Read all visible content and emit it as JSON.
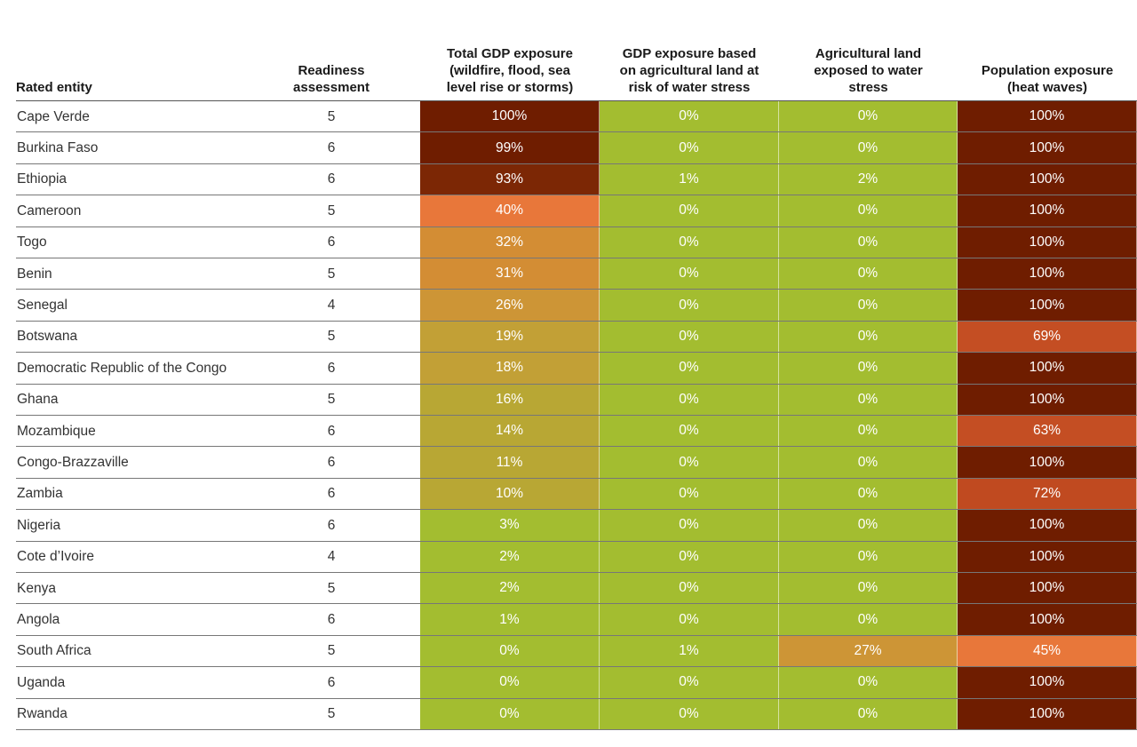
{
  "chart_data": {
    "type": "heatmap",
    "columns": [
      "Rated entity",
      "Readiness assessment",
      "Total GDP exposure (wildfire, flood, sea level rise or storms)",
      "GDP exposure based on agricultural land at risk of water stress",
      "Agricultural land exposed to water stress",
      "Population exposure (heat waves)"
    ],
    "header_lines": [
      [
        "Rated entity"
      ],
      [
        "Readiness",
        "assessment"
      ],
      [
        "Total GDP exposure",
        "(wildfire, flood, sea",
        "level rise or storms)"
      ],
      [
        "GDP exposure based",
        "on agricultural land at",
        "risk of water stress"
      ],
      [
        "Agricultural land",
        "exposed to water",
        "stress"
      ],
      [
        "Population exposure",
        "(heat waves)"
      ]
    ],
    "rows": [
      {
        "entity": "Cape Verde",
        "readiness": "5",
        "total_gdp": 100,
        "gdp_agri": 0,
        "agri_land": 0,
        "population": 100
      },
      {
        "entity": "Burkina Faso",
        "readiness": "6",
        "total_gdp": 99,
        "gdp_agri": 0,
        "agri_land": 0,
        "population": 100
      },
      {
        "entity": "Ethiopia",
        "readiness": "6",
        "total_gdp": 93,
        "gdp_agri": 1,
        "agri_land": 2,
        "population": 100
      },
      {
        "entity": "Cameroon",
        "readiness": "5",
        "total_gdp": 40,
        "gdp_agri": 0,
        "agri_land": 0,
        "population": 100
      },
      {
        "entity": "Togo",
        "readiness": "6",
        "total_gdp": 32,
        "gdp_agri": 0,
        "agri_land": 0,
        "population": 100
      },
      {
        "entity": "Benin",
        "readiness": "5",
        "total_gdp": 31,
        "gdp_agri": 0,
        "agri_land": 0,
        "population": 100
      },
      {
        "entity": "Senegal",
        "readiness": "4",
        "total_gdp": 26,
        "gdp_agri": 0,
        "agri_land": 0,
        "population": 100
      },
      {
        "entity": "Botswana",
        "readiness": "5",
        "total_gdp": 19,
        "gdp_agri": 0,
        "agri_land": 0,
        "population": 69
      },
      {
        "entity": "Democratic Republic of the Congo",
        "readiness": "6",
        "total_gdp": 18,
        "gdp_agri": 0,
        "agri_land": 0,
        "population": 100
      },
      {
        "entity": "Ghana",
        "readiness": "5",
        "total_gdp": 16,
        "gdp_agri": 0,
        "agri_land": 0,
        "population": 100
      },
      {
        "entity": "Mozambique",
        "readiness": "6",
        "total_gdp": 14,
        "gdp_agri": 0,
        "agri_land": 0,
        "population": 63
      },
      {
        "entity": "Congo-Brazzaville",
        "readiness": "6",
        "total_gdp": 11,
        "gdp_agri": 0,
        "agri_land": 0,
        "population": 100
      },
      {
        "entity": "Zambia",
        "readiness": "6",
        "total_gdp": 10,
        "gdp_agri": 0,
        "agri_land": 0,
        "population": 72
      },
      {
        "entity": "Nigeria",
        "readiness": "6",
        "total_gdp": 3,
        "gdp_agri": 0,
        "agri_land": 0,
        "population": 100
      },
      {
        "entity": "Cote d’Ivoire",
        "readiness": "4",
        "total_gdp": 2,
        "gdp_agri": 0,
        "agri_land": 0,
        "population": 100
      },
      {
        "entity": "Kenya",
        "readiness": "5",
        "total_gdp": 2,
        "gdp_agri": 0,
        "agri_land": 0,
        "population": 100
      },
      {
        "entity": "Angola",
        "readiness": "6",
        "total_gdp": 1,
        "gdp_agri": 0,
        "agri_land": 0,
        "population": 100
      },
      {
        "entity": "South Africa",
        "readiness": "5",
        "total_gdp": 0,
        "gdp_agri": 1,
        "agri_land": 27,
        "population": 45
      },
      {
        "entity": "Uganda",
        "readiness": "6",
        "total_gdp": 0,
        "gdp_agri": 0,
        "agri_land": 0,
        "population": 100
      },
      {
        "entity": "Rwanda",
        "readiness": "5",
        "total_gdp": 0,
        "gdp_agri": 0,
        "agri_land": 0,
        "population": 100
      }
    ],
    "value_unit": "%",
    "color_scale": {
      "low": "#a3bd30",
      "low_mid": "#bca433",
      "mid": "#d29135",
      "high": "#e57b36",
      "very_high": "#bf4a22",
      "max": "#6f1d00"
    }
  }
}
